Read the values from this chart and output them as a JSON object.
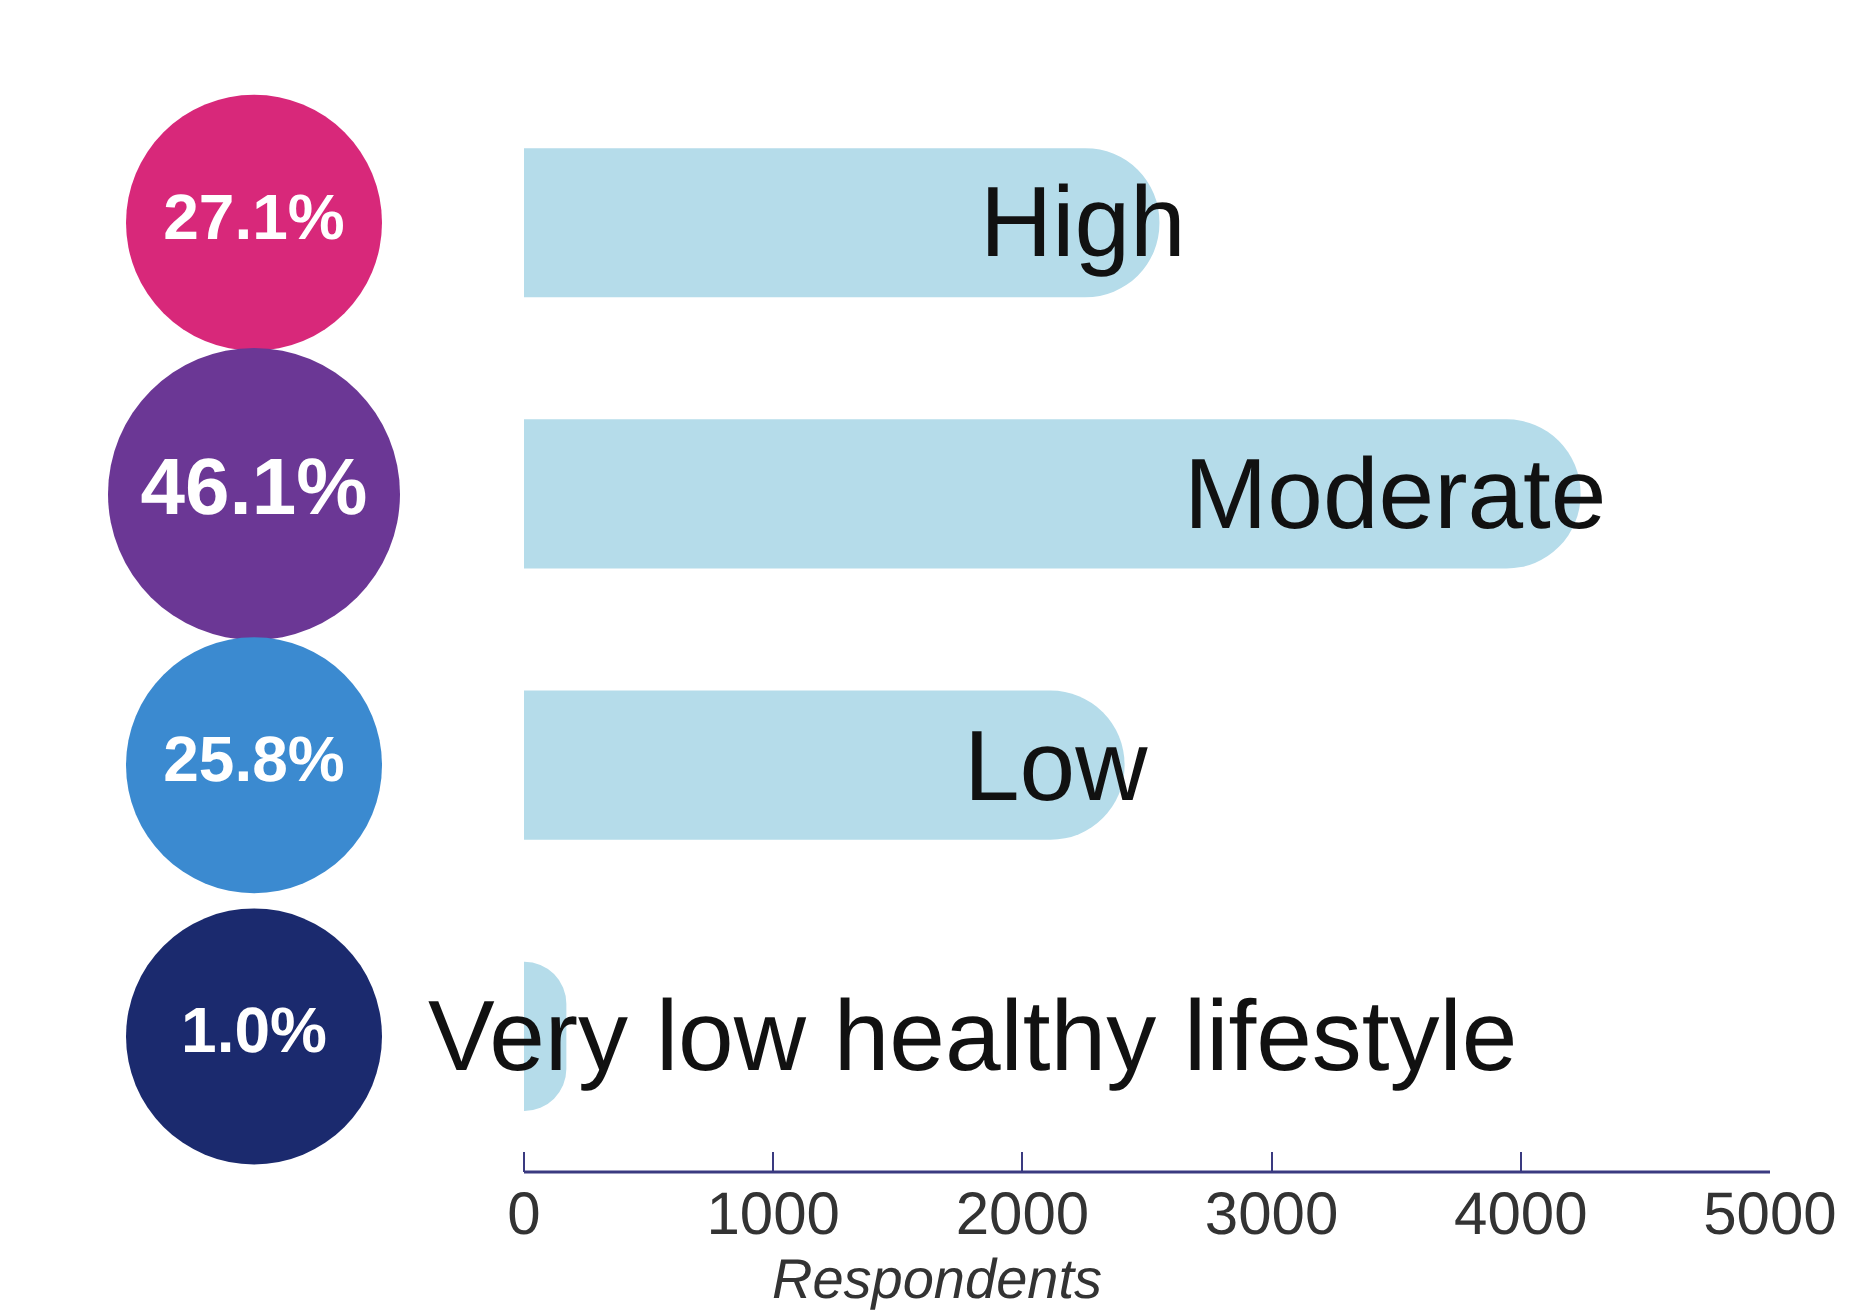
{
  "chart_data": {
    "type": "bar",
    "orientation": "horizontal",
    "categories": [
      "High",
      "Moderate",
      "Low",
      "Very low healthy lifestyle"
    ],
    "values": [
      2550,
      4240,
      2410,
      170
    ],
    "annotations": [
      "27.1%",
      "46.1%",
      "25.8%",
      "1.0%"
    ],
    "color": "#b5dcea",
    "xlabel": "Respondents",
    "xlim": [
      0,
      5000
    ],
    "xticks": [
      0,
      1000,
      2000,
      3000,
      4000,
      5000
    ],
    "grid": false,
    "legend": false,
    "tick_labels": "x"
  }
}
